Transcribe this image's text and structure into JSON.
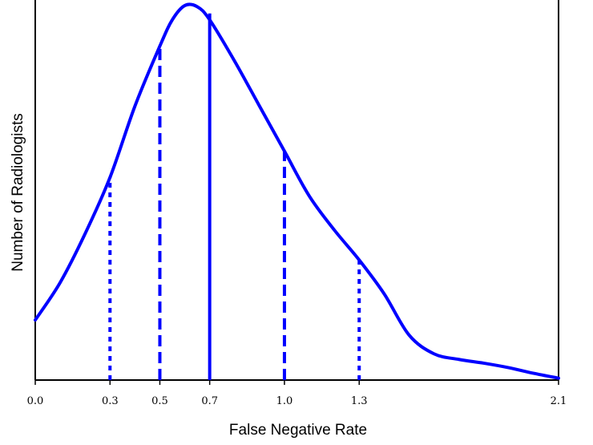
{
  "chart_data": {
    "type": "line",
    "title": "",
    "xlabel": "False Negative Rate",
    "ylabel": "Number of Radiologists",
    "xlim": [
      0.0,
      2.1
    ],
    "x_ticks": [
      {
        "value": 0.0,
        "label": "0.0"
      },
      {
        "value": 0.3,
        "label": "0.3"
      },
      {
        "value": 0.5,
        "label": "0.5"
      },
      {
        "value": 0.7,
        "label": "0.7"
      },
      {
        "value": 1.0,
        "label": "1.0"
      },
      {
        "value": 1.3,
        "label": "1.3"
      },
      {
        "value": 2.1,
        "label": "2.1"
      }
    ],
    "y_ticks_shown": false,
    "grid": false,
    "color": "#0000ff",
    "curve": {
      "x": [
        0.0,
        0.1,
        0.2,
        0.3,
        0.4,
        0.5,
        0.55,
        0.6,
        0.65,
        0.7,
        0.8,
        0.9,
        1.0,
        1.1,
        1.2,
        1.3,
        1.4,
        1.5,
        1.6,
        1.7,
        1.8,
        1.9,
        2.0,
        2.1
      ],
      "y": [
        0.16,
        0.26,
        0.39,
        0.54,
        0.73,
        0.89,
        0.96,
        0.998,
        0.995,
        0.96,
        0.85,
        0.73,
        0.61,
        0.49,
        0.4,
        0.32,
        0.23,
        0.12,
        0.07,
        0.055,
        0.045,
        0.033,
        0.018,
        0.005
      ]
    },
    "reference_lines": [
      {
        "x": 0.3,
        "style": "dotted"
      },
      {
        "x": 0.5,
        "style": "dashed"
      },
      {
        "x": 0.7,
        "style": "solid"
      },
      {
        "x": 1.0,
        "style": "dashed"
      },
      {
        "x": 1.3,
        "style": "dotted"
      }
    ]
  }
}
